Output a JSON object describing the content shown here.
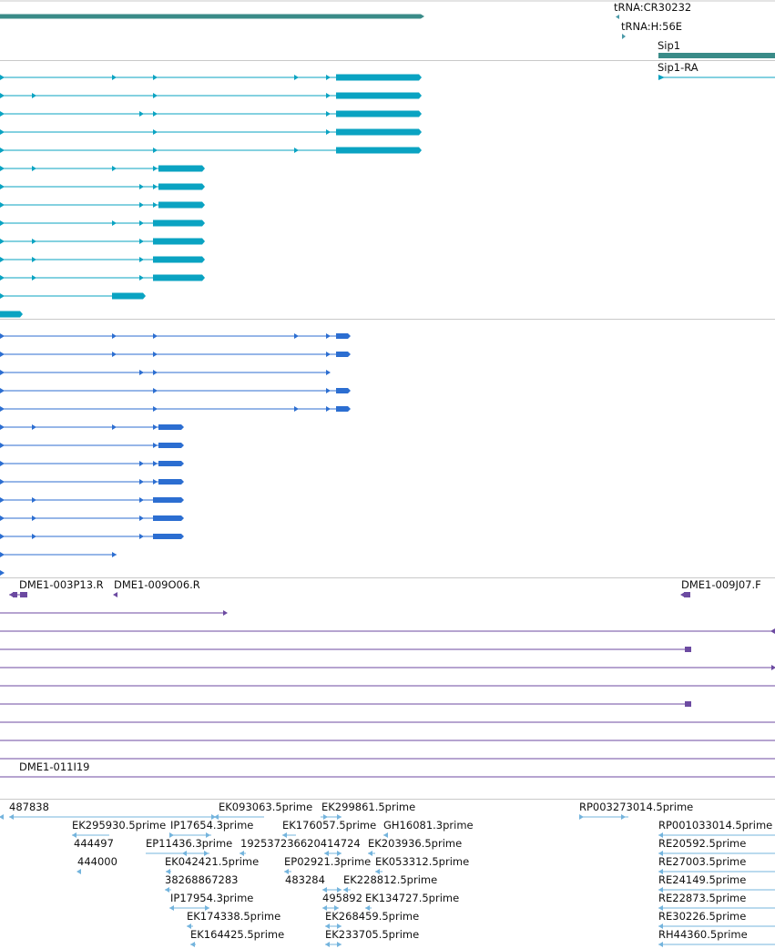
{
  "colors": {
    "gene": "#3a8b88",
    "tx_mrna": "#0aa3c2",
    "tx_cds": "#2c6ed1",
    "clone": "#6c4aa1",
    "est": "#74b4dd",
    "trna": "#4a9aa8",
    "divider": "#c9c9c9"
  },
  "tracks": {
    "genes": {
      "labels": {
        "trna1": "tRNA:CR30232",
        "trna2": "tRNA:H:56E",
        "gene": "Sip1",
        "transcript": "Sip1-RA"
      }
    },
    "clones": {
      "labels": {
        "c1": "DME1-003P13.R",
        "c2": "DME1-009O06.R",
        "c3": "DME1-009J07.F",
        "c4": "DME1-011I19"
      }
    },
    "ests": {
      "labels": {
        "e1": "487838",
        "e2": "EK093063.5prime",
        "e3": "EK299861.5prime",
        "e4": "RP003273014.5prime",
        "e5": "EK295930.5prime",
        "e6": "IP17654.3prime",
        "e7": "EK176057.5prime",
        "e8": "GH16081.3prime",
        "e9": "RP001033014.5prime",
        "e10": "444497",
        "e11": "EP11436.3prime",
        "e12": "192537236620414724",
        "e13": "EK203936.5prime",
        "e14": "RE20592.5prime",
        "e15": "444000",
        "e16": "EK042421.5prime",
        "e17": "EP02921.3prime",
        "e18": "EK053312.5prime",
        "e19": "RE27003.5prime",
        "e20": "38268867283",
        "e21": "483284",
        "e22": "EK228812.5prime",
        "e23": "RE24149.5prime",
        "e24": "IP17954.3prime",
        "e25": "495892",
        "e26": "EK134727.5prime",
        "e27": "RE22873.5prime",
        "e28": "EK174338.5prime",
        "e29": "EK268459.5prime",
        "e30": "RE30226.5prime",
        "e31": "EK164425.5prime",
        "e32": "EK233705.5prime",
        "e33": "RH44360.5prime"
      }
    }
  }
}
